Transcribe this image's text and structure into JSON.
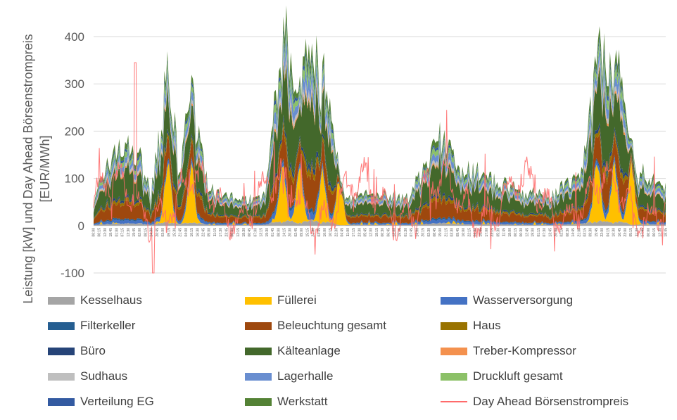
{
  "chart_data": {
    "type": "area",
    "title": "",
    "ylabel_line1": "Leistung [kW] und Day Ahead Börsenstrompreis",
    "ylabel_line2": "[EUR/MWh]",
    "ylim": [
      -100,
      400
    ],
    "yticks": [
      -100,
      0,
      100,
      200,
      300,
      400
    ],
    "grid": true,
    "legend_position": "bottom",
    "stacked": true,
    "x_description": "15-minute intervals over one week",
    "x_tick_labels": [
      "00:00",
      "06:15",
      "12:30",
      "18:45",
      "01:00",
      "07:15",
      "13:30",
      "19:45",
      "02:00",
      "08:15",
      "14:30",
      "20:45",
      "03:00",
      "09:15",
      "15:30",
      "21:45",
      "04:00",
      "10:15",
      "16:30",
      "22:45",
      "05:00",
      "11:15",
      "17:30",
      "23:45",
      "06:00",
      "12:15",
      "18:30",
      "00:45",
      "07:00",
      "13:15",
      "19:30",
      "01:45",
      "08:00",
      "14:15",
      "20:30",
      "02:45",
      "09:00",
      "15:15",
      "21:30",
      "03:45",
      "10:00",
      "16:15",
      "22:30",
      "04:45",
      "11:00",
      "17:15",
      "23:30",
      "05:45",
      "12:00",
      "18:15",
      "00:30",
      "06:45",
      "13:00",
      "19:15",
      "01:30",
      "07:45",
      "14:00",
      "20:15",
      "02:30",
      "08:45",
      "15:00",
      "21:15",
      "03:30",
      "09:45",
      "16:00",
      "22:15",
      "04:30",
      "10:45",
      "17:00",
      "23:15",
      "05:30",
      "11:45",
      "18:00",
      "00:15",
      "06:30",
      "12:45",
      "19:00",
      "01:15",
      "07:30",
      "13:45",
      "20:00",
      "02:15",
      "08:30",
      "14:45",
      "21:00",
      "03:15",
      "09:30",
      "15:45",
      "22:00",
      "04:15",
      "10:30",
      "16:45",
      "23:00",
      "05:15",
      "11:30",
      "17:45",
      "00:00",
      "06:15",
      "12:30",
      "18:45"
    ],
    "series": [
      {
        "name": "Kesselhaus",
        "color": "#a5a5a5",
        "legend_swatch": "solid"
      },
      {
        "name": "Füllerei",
        "color": "#ffc000",
        "legend_swatch": "solid"
      },
      {
        "name": "Wasserversorgung",
        "color": "#4472c4",
        "legend_swatch": "solid"
      },
      {
        "name": "Filterkeller",
        "color": "#255e91",
        "legend_swatch": "solid"
      },
      {
        "name": "Beleuchtung gesamt",
        "color": "#9e480e",
        "legend_swatch": "solid"
      },
      {
        "name": "Haus",
        "color": "#997300",
        "legend_swatch": "solid"
      },
      {
        "name": "Büro",
        "color": "#264478",
        "legend_swatch": "solid"
      },
      {
        "name": "Kälteanlage",
        "color": "#43682b",
        "legend_swatch": "solid"
      },
      {
        "name": "Treber-Kompressor",
        "color": "#f4914e",
        "legend_swatch": "solid"
      },
      {
        "name": "Sudhaus",
        "color": "#bfbfbf",
        "legend_swatch": "solid"
      },
      {
        "name": "Lagerhalle",
        "color": "#698ed0",
        "legend_swatch": "solid"
      },
      {
        "name": "Druckluft gesamt",
        "color": "#8cc168",
        "legend_swatch": "solid"
      },
      {
        "name": "Verteilung EG",
        "color": "#335aa1",
        "legend_swatch": "solid"
      },
      {
        "name": "Werkstatt",
        "color": "#548235",
        "legend_swatch": "solid"
      },
      {
        "name": "Day Ahead Börsenstrompreis",
        "color": "#ff6b6b",
        "legend_swatch": "line"
      }
    ],
    "stack_envelope": {
      "description": "approximate total stacked load (kW) across the week, read at key points",
      "x_fraction": [
        0.0,
        0.04,
        0.08,
        0.1,
        0.13,
        0.15,
        0.17,
        0.2,
        0.25,
        0.3,
        0.33,
        0.35,
        0.37,
        0.4,
        0.44,
        0.5,
        0.55,
        0.6,
        0.65,
        0.7,
        0.75,
        0.8,
        0.85,
        0.88,
        0.9,
        0.92,
        0.95,
        1.0
      ],
      "total": [
        55,
        170,
        150,
        60,
        330,
        100,
        300,
        70,
        55,
        60,
        385,
        340,
        330,
        320,
        60,
        65,
        60,
        175,
        120,
        95,
        70,
        60,
        110,
        330,
        360,
        320,
        110,
        80
      ]
    },
    "fuellerei_peaks": [
      {
        "x_fraction": 0.13,
        "value": 125
      },
      {
        "x_fraction": 0.17,
        "value": 120
      },
      {
        "x_fraction": 0.33,
        "value": 120
      },
      {
        "x_fraction": 0.36,
        "value": 110
      },
      {
        "x_fraction": 0.4,
        "value": 110
      },
      {
        "x_fraction": 0.43,
        "value": 100
      },
      {
        "x_fraction": 0.88,
        "value": 130
      },
      {
        "x_fraction": 0.91,
        "value": 120
      },
      {
        "x_fraction": 0.94,
        "value": 130
      }
    ],
    "price_extremes": {
      "max": 345,
      "min": -100
    }
  }
}
